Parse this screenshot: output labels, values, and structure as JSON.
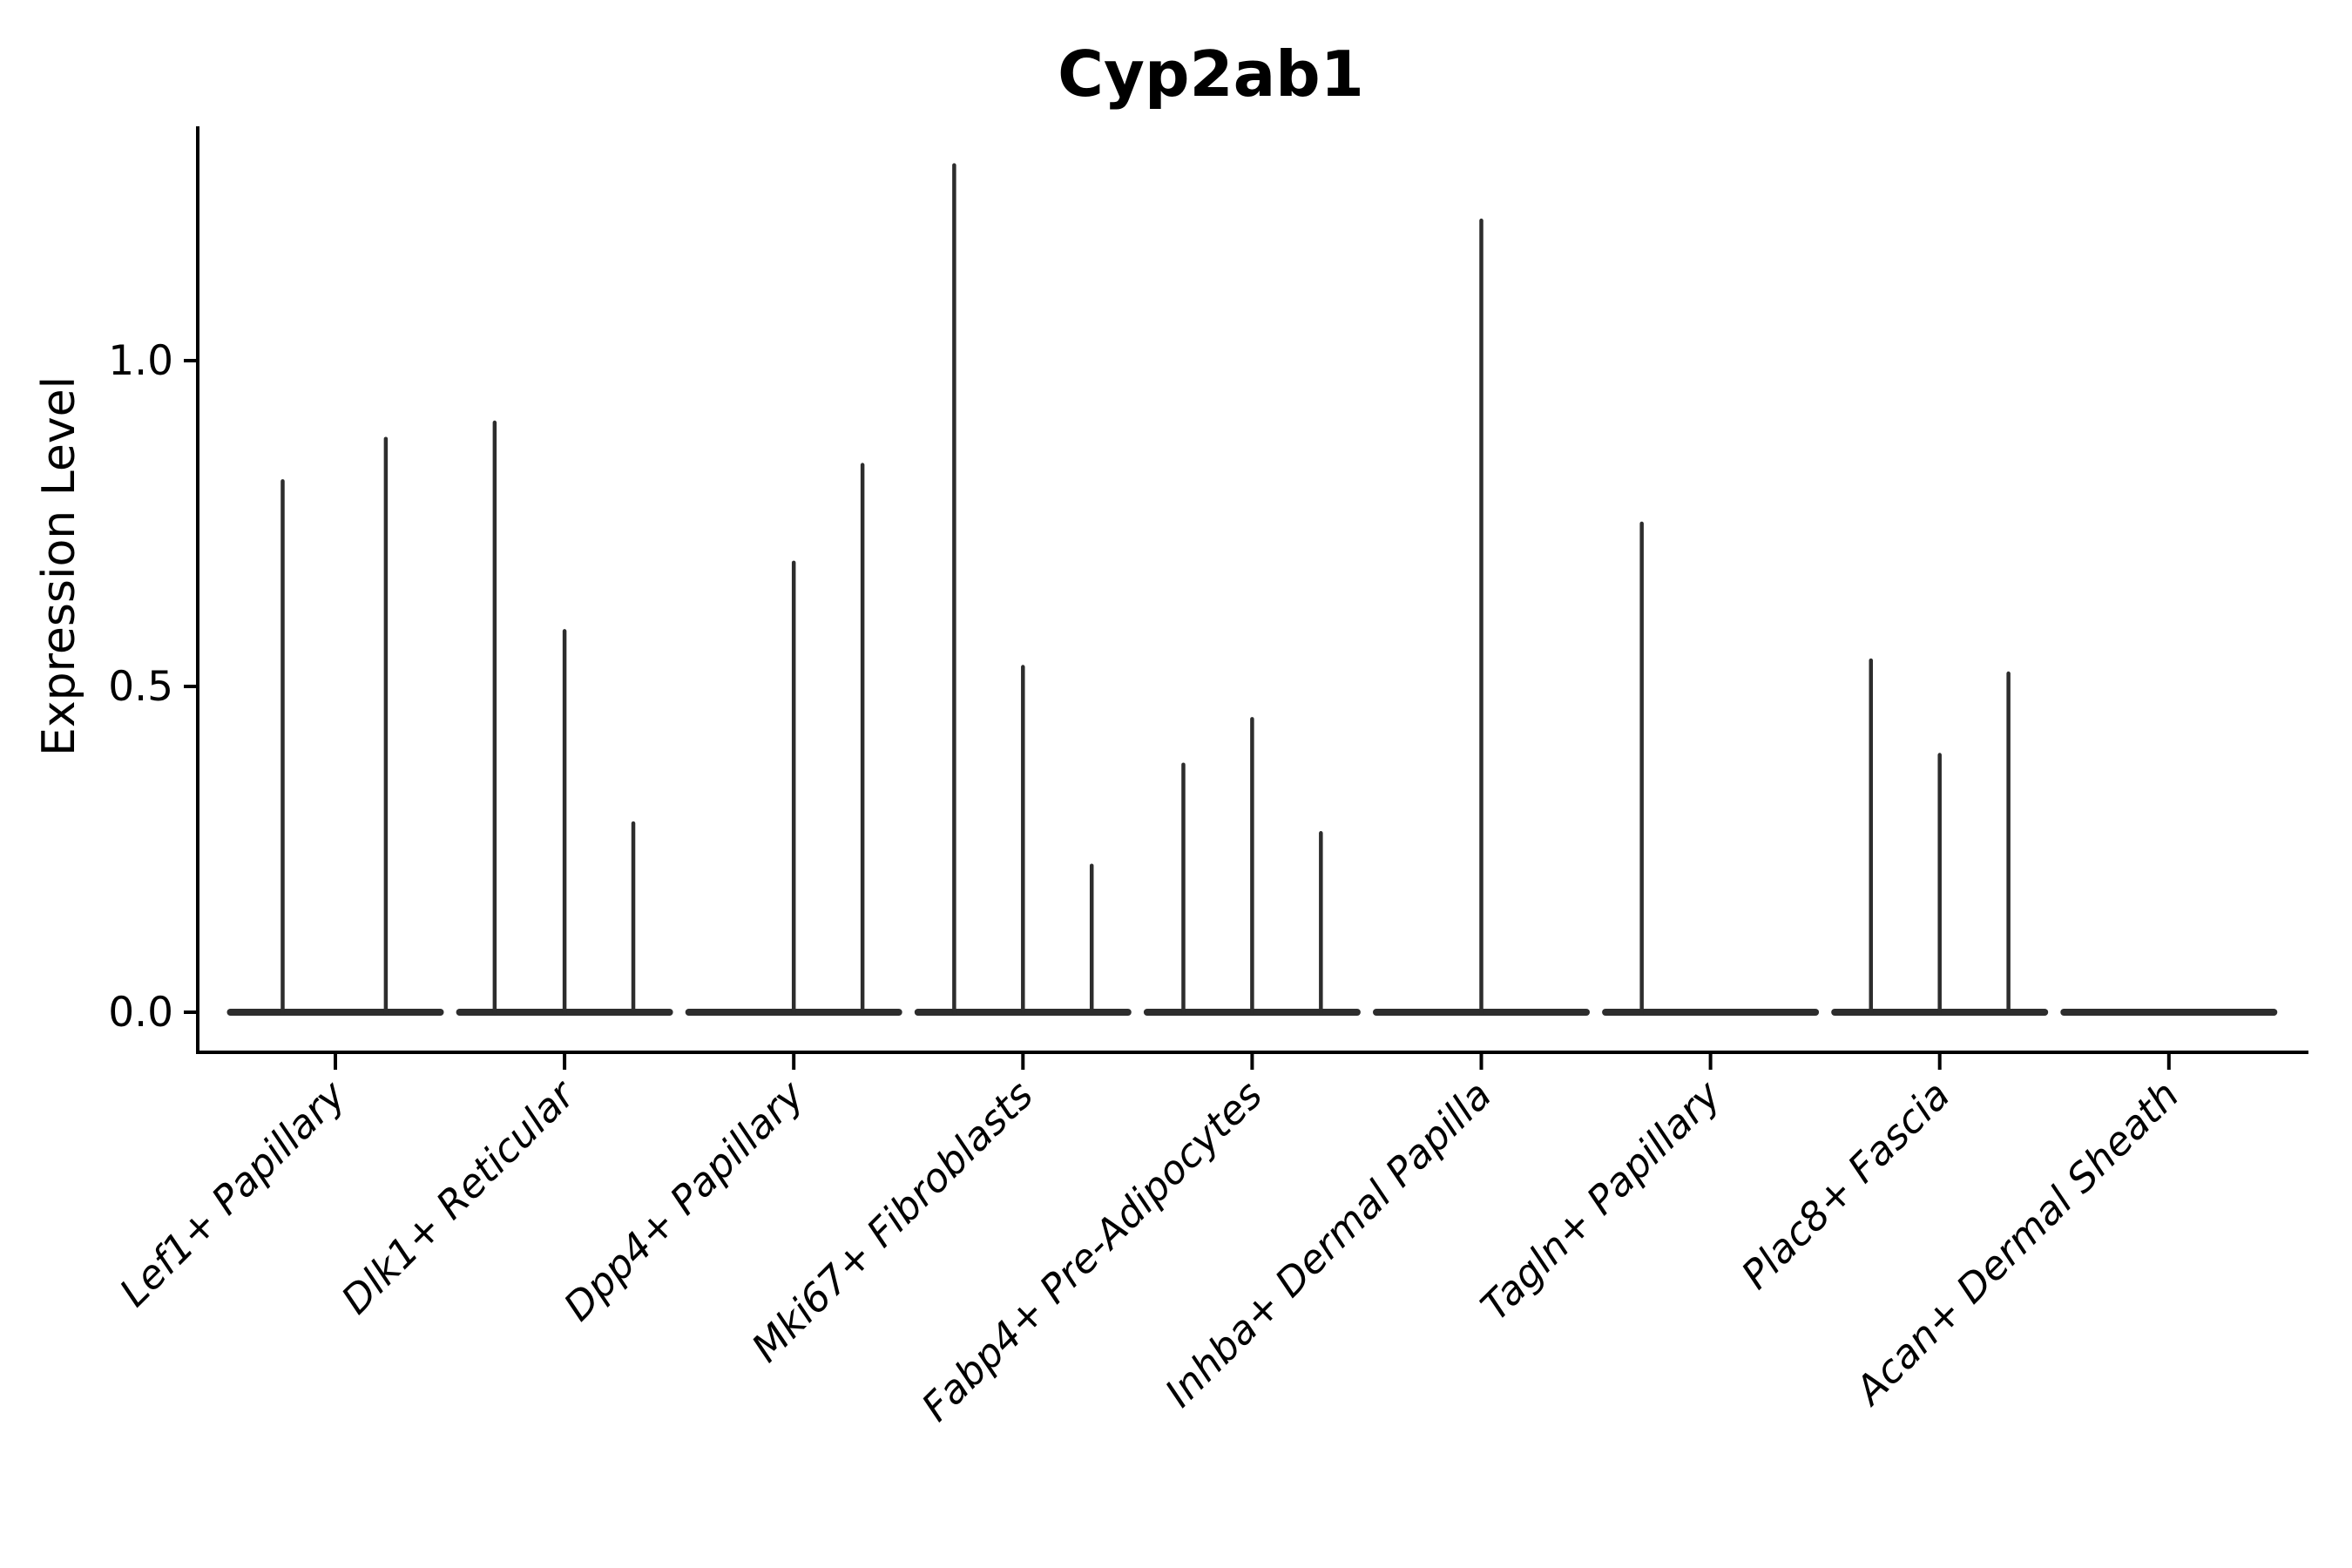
{
  "chart_data": {
    "type": "violin",
    "title": "Cyp2ab1",
    "ylabel": "Expression Level",
    "xlabel": "",
    "legend": "none",
    "grid": false,
    "spines": [
      "left",
      "bottom"
    ],
    "ylim": [
      -0.06,
      1.36
    ],
    "ytick_values": [
      0.0,
      0.5,
      1.0
    ],
    "ytick_labels": [
      "0.0",
      "0.5",
      "1.0"
    ],
    "categories": [
      "Lef1+ Papillary",
      "Dlk1+ Reticular",
      "Dpp4+ Papillary",
      "Mki67+ Fibroblasts",
      "Fabp4+ Pre-Adipocytes",
      "Inhba+ Dermal Papilla",
      "Tagln+ Papillary",
      "Plac8+ Fascia",
      "Acan+ Dermal Sheath"
    ],
    "groups": [
      {
        "label": "Lef1+ Papillary",
        "violins": [
          {
            "dx": -0.23,
            "max": 0.815
          },
          {
            "dx": 0.22,
            "max": 0.88
          }
        ]
      },
      {
        "label": "Dlk1+ Reticular",
        "violins": [
          {
            "dx": -0.305,
            "max": 0.905
          },
          {
            "dx": 0.0,
            "max": 0.585
          },
          {
            "dx": 0.3,
            "max": 0.29
          }
        ]
      },
      {
        "label": "Dpp4+ Papillary",
        "violins": [
          {
            "dx": 0.0,
            "max": 0.69
          },
          {
            "dx": 0.3,
            "max": 0.84
          }
        ]
      },
      {
        "label": "Mki67+ Fibroblasts",
        "violins": [
          {
            "dx": -0.3,
            "max": 1.3
          },
          {
            "dx": 0.0,
            "max": 0.53
          },
          {
            "dx": 0.3,
            "max": 0.225
          }
        ]
      },
      {
        "label": "Fabp4+ Pre-Adipocytes",
        "violins": [
          {
            "dx": -0.3,
            "max": 0.38
          },
          {
            "dx": 0.0,
            "max": 0.45
          },
          {
            "dx": 0.3,
            "max": 0.275
          }
        ]
      },
      {
        "label": "Inhba+ Dermal Papilla",
        "violins": [
          {
            "dx": 0.0,
            "max": 1.215
          }
        ]
      },
      {
        "label": "Tagln+ Papillary",
        "violins": [
          {
            "dx": -0.3,
            "max": 0.75
          }
        ]
      },
      {
        "label": "Plac8+ Fascia",
        "violins": [
          {
            "dx": -0.3,
            "max": 0.54
          },
          {
            "dx": 0.0,
            "max": 0.395
          },
          {
            "dx": 0.3,
            "max": 0.52
          }
        ]
      },
      {
        "label": "Acan+ Dermal Sheath",
        "violins": []
      }
    ],
    "colors": {
      "violin_line": "#2d2d2d",
      "axis": "#000000",
      "background": "#ffffff"
    }
  }
}
